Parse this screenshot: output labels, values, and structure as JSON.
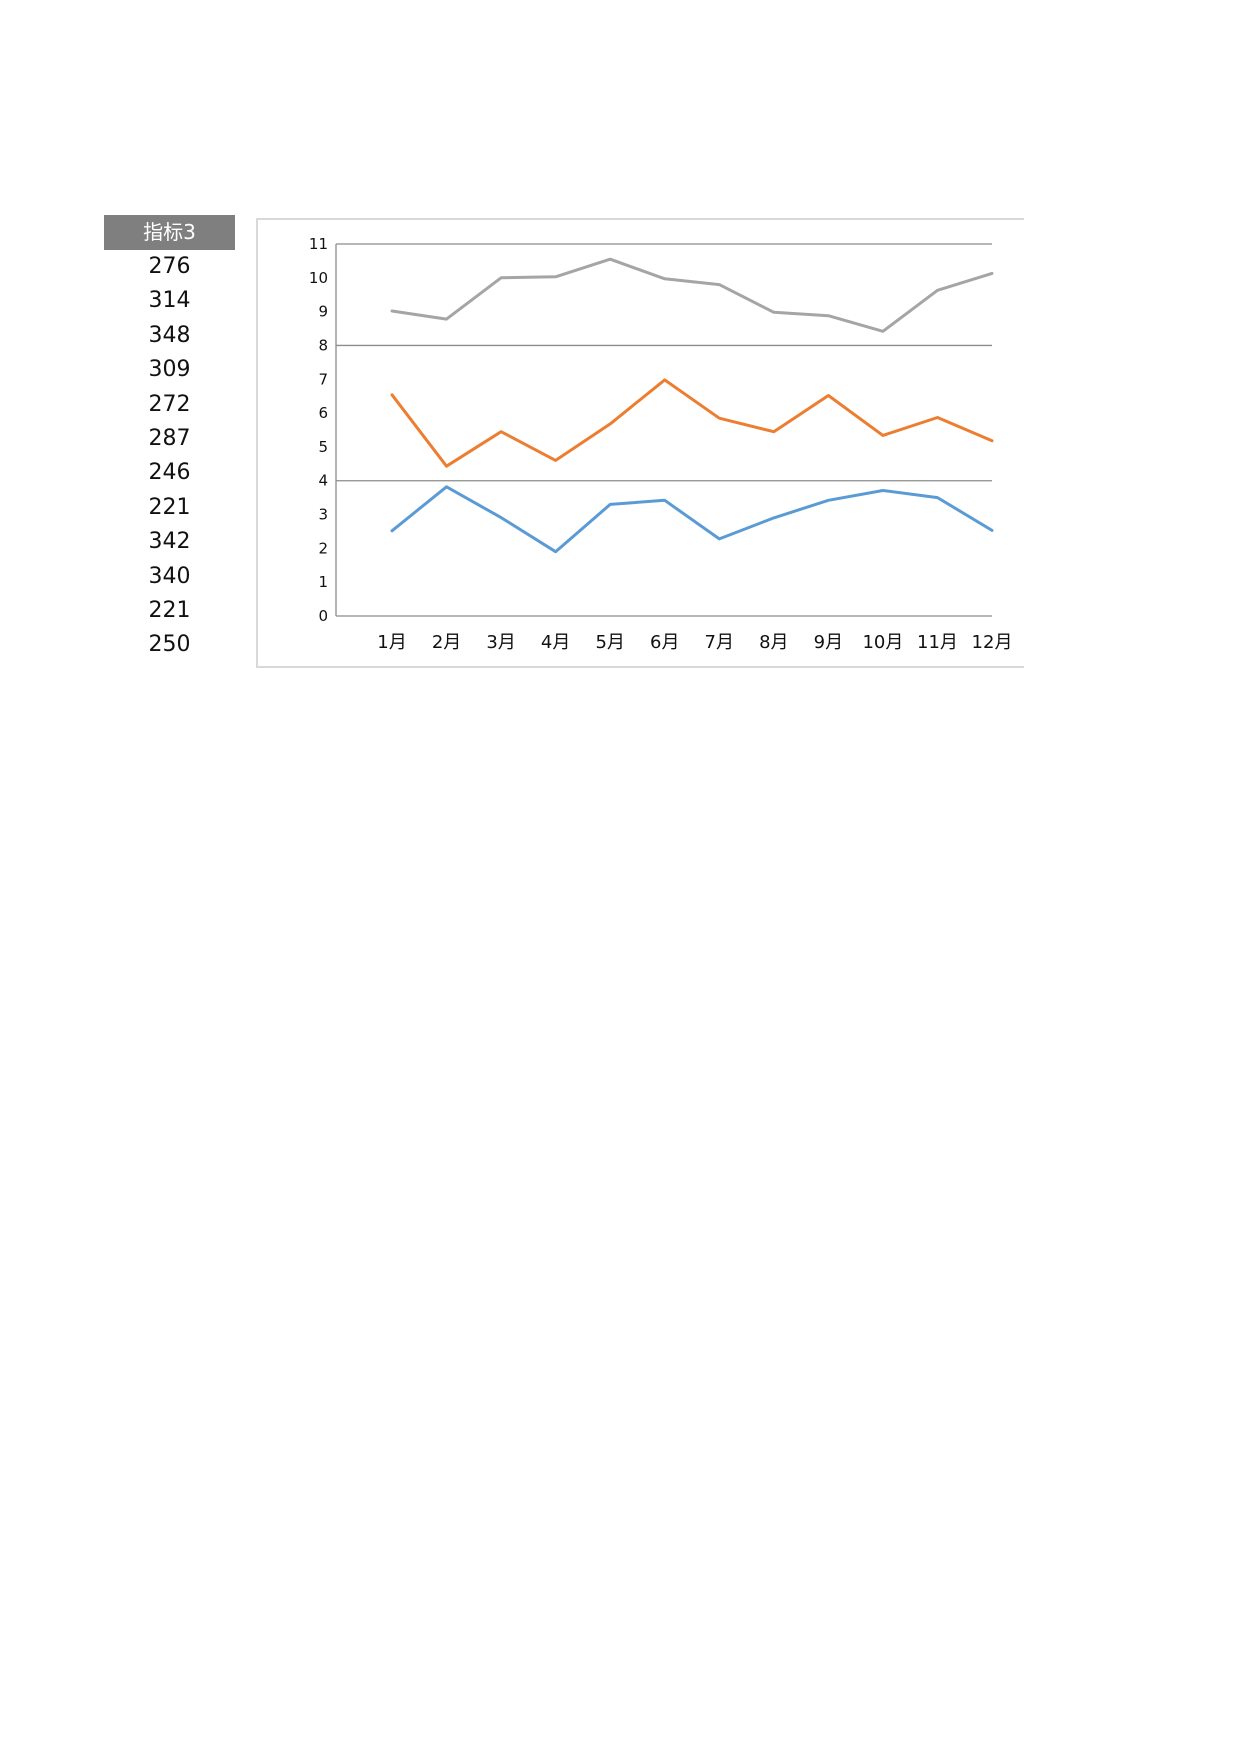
{
  "table": {
    "header": "指标3",
    "values": [
      "276",
      "314",
      "348",
      "309",
      "272",
      "287",
      "246",
      "221",
      "342",
      "340",
      "221",
      "250"
    ]
  },
  "chart_data": {
    "type": "line",
    "categories": [
      "1月",
      "2月",
      "3月",
      "4月",
      "5月",
      "6月",
      "7月",
      "8月",
      "9月",
      "10月",
      "11月",
      "12月"
    ],
    "ylim": [
      0,
      11
    ],
    "yticks": [
      "0",
      "1",
      "2",
      "3",
      "4",
      "5",
      "6",
      "7",
      "8",
      "9",
      "10",
      "11"
    ],
    "gridlines": [
      4,
      8,
      11
    ],
    "title": "",
    "xlabel": "",
    "ylabel": "",
    "legend": "none",
    "series": [
      {
        "color": "#5b9bd5",
        "values": [
          2.52,
          3.82,
          2.91,
          1.9,
          3.3,
          3.42,
          2.28,
          2.9,
          3.42,
          3.71,
          3.5,
          2.53
        ]
      },
      {
        "color": "#ed7d31",
        "values": [
          6.54,
          4.43,
          5.45,
          4.6,
          5.68,
          6.98,
          5.85,
          5.45,
          6.52,
          5.34,
          5.87,
          5.18
        ]
      },
      {
        "color": "#a5a5a5",
        "values": [
          9.02,
          8.78,
          10.0,
          10.03,
          10.55,
          9.97,
          9.8,
          8.98,
          8.88,
          8.42,
          9.63,
          10.13
        ]
      }
    ]
  }
}
